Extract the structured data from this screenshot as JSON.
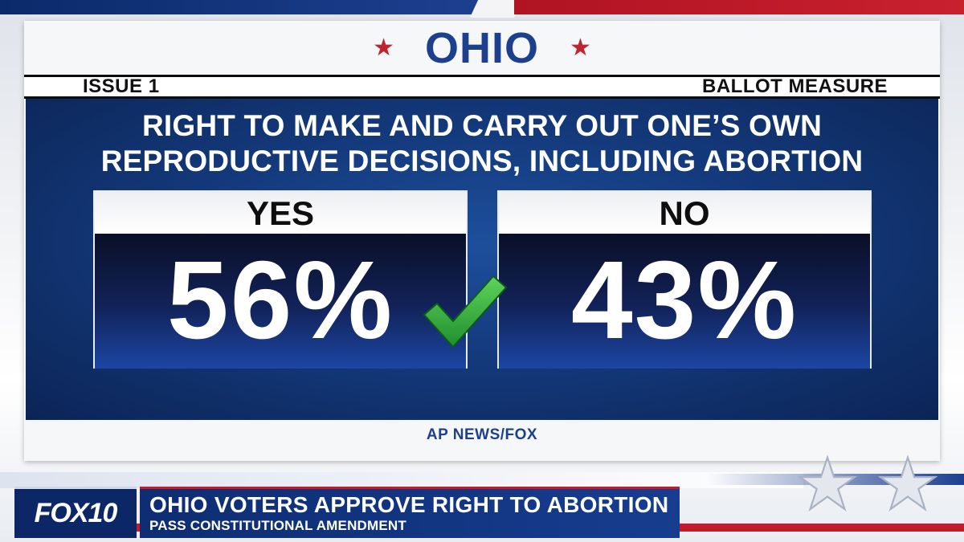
{
  "header": {
    "state": "OHIO",
    "issue_label": "ISSUE 1",
    "measure_type": "BALLOT MEASURE"
  },
  "question": {
    "line1": "RIGHT TO MAKE AND CARRY OUT ONE’S OWN",
    "line2": "REPRODUCTIVE DECISIONS, INCLUDING ABORTION"
  },
  "results": {
    "yes": {
      "label": "YES",
      "value": "56%",
      "winner": true
    },
    "no": {
      "label": "NO",
      "value": "43%",
      "winner": false
    }
  },
  "source": "AP NEWS/FOX",
  "lower_third": {
    "logo": "FOX10",
    "headline": "OHIO VOTERS APPROVE RIGHT TO ABORTION",
    "subheadline": "PASS CONSTITUTIONAL AMENDMENT"
  },
  "colors": {
    "navy": "#1c3f8e",
    "red": "#c0242e",
    "check_green": "#2fa83a"
  }
}
